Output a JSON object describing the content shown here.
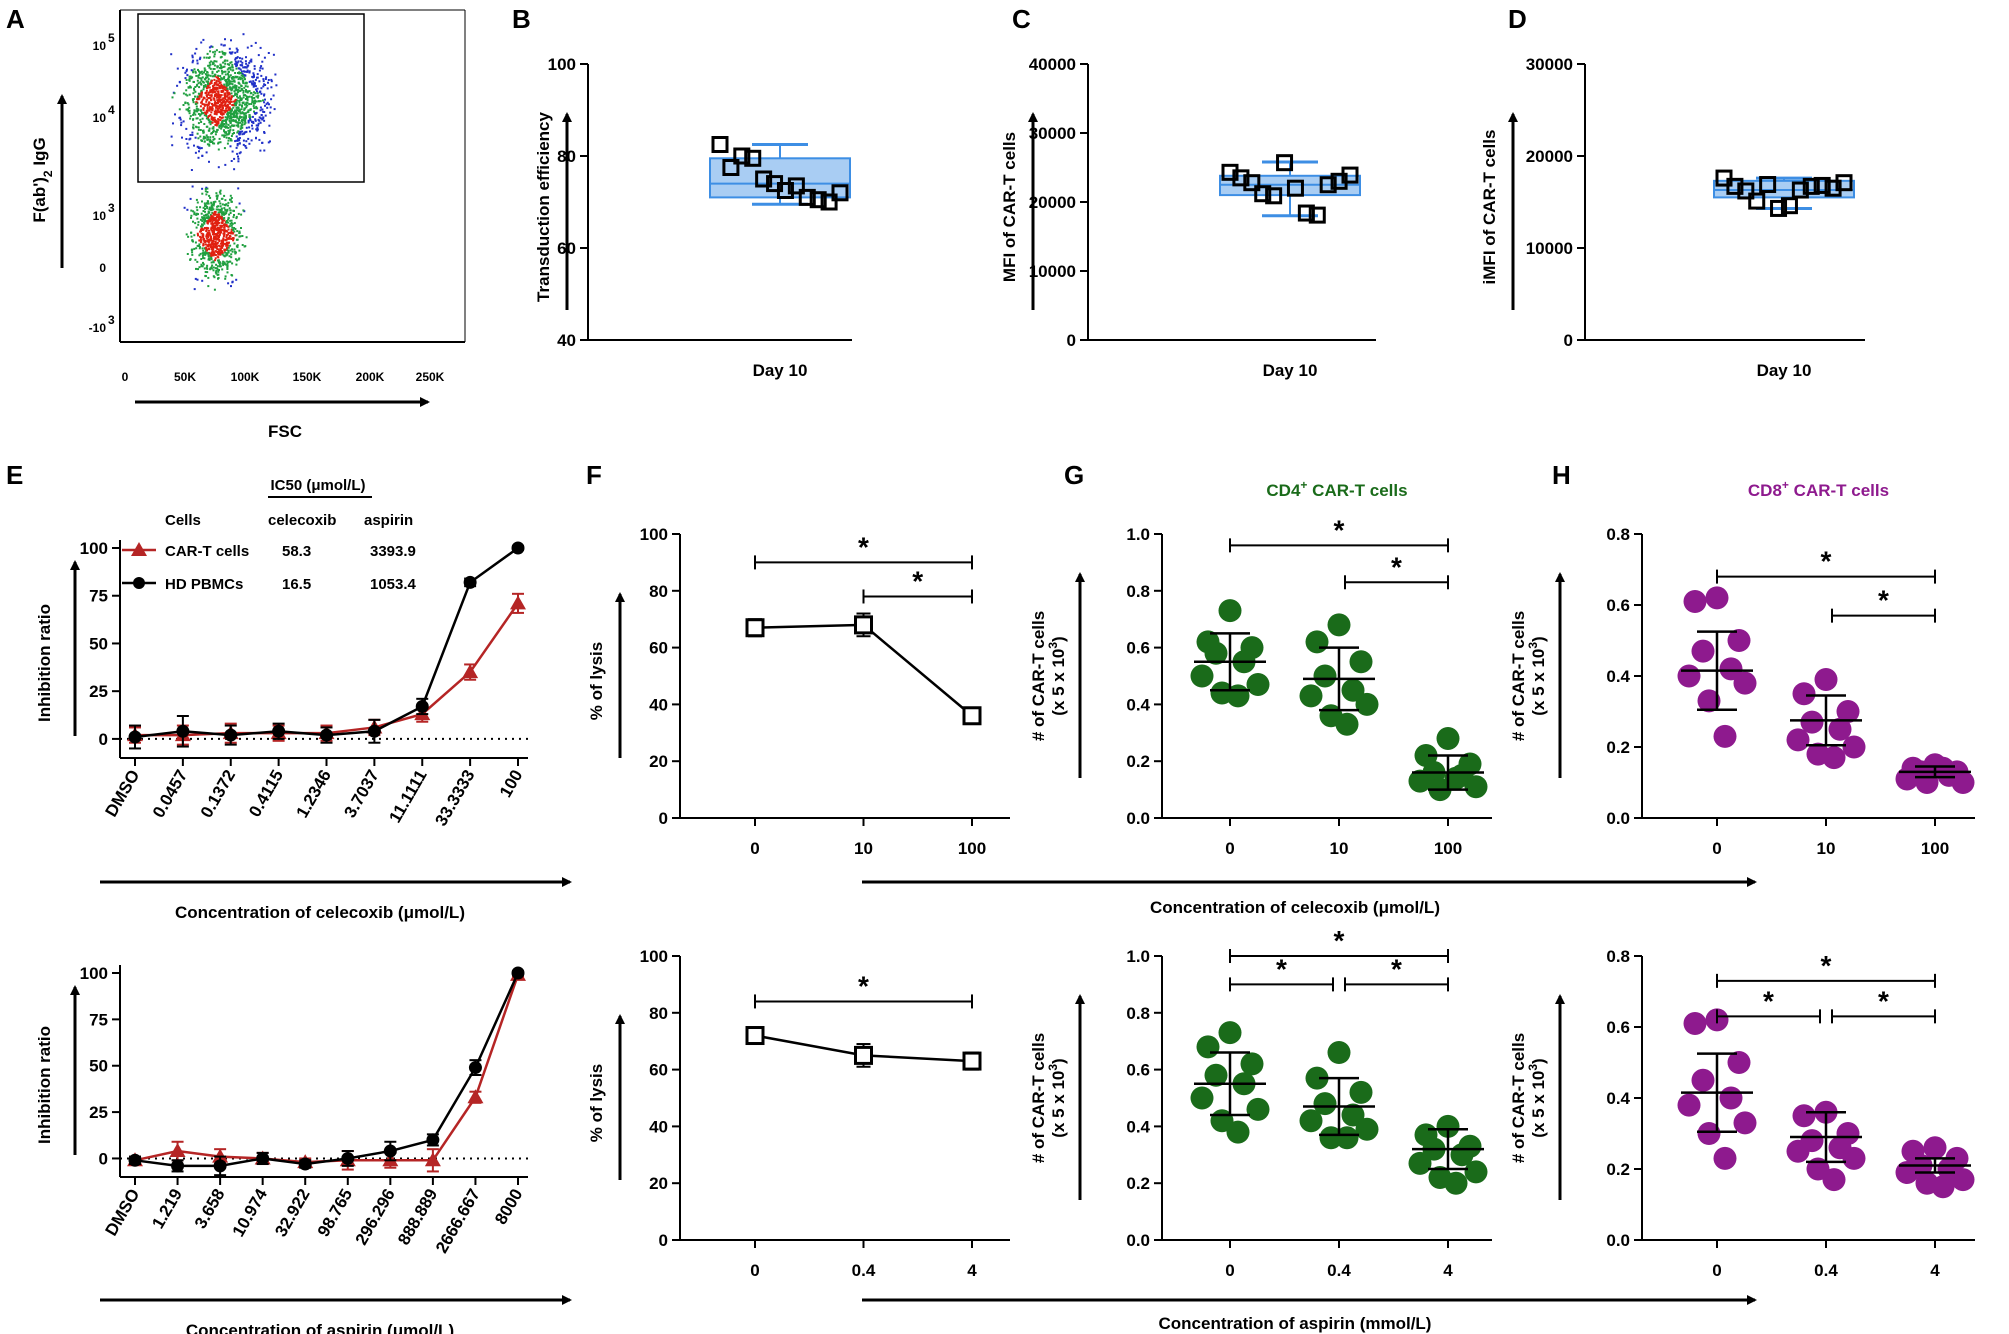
{
  "figure": {
    "panel_letters": [
      "A",
      "B",
      "C",
      "D",
      "E",
      "F",
      "G",
      "H"
    ],
    "bottom_axis_labels": {
      "celecoxib_shared": "Concentration of celecoxib (μmol/L)",
      "aspirin_shared": "Concentration of aspirin (mmol/L)"
    }
  },
  "chart_data": [
    {
      "id": "A",
      "type": "scatter",
      "title": "",
      "xlabel": "FSC",
      "ylabel_main": "F(ab')",
      "ylabel_sub": "2",
      "ylabel_end": " IgG",
      "xticks": [
        "0",
        "50K",
        "100K",
        "150K",
        "200K",
        "250K"
      ],
      "yticks": [
        {
          "base": "10",
          "exp": "5"
        },
        {
          "base": "10",
          "exp": "4"
        },
        {
          "base": "10",
          "exp": "3"
        },
        {
          "base": "0",
          "exp": ""
        },
        {
          "base": "-10",
          "exp": "3"
        }
      ],
      "gate": "F(ab')2 IgG positive region",
      "colors": {
        "low": "#2030c8",
        "mid": "#20a040",
        "high": "#e02010"
      }
    },
    {
      "id": "B",
      "type": "scatter",
      "xlabel": "Day 10",
      "ylabel": "Transduction efficiency",
      "ylim": [
        40,
        100
      ],
      "yticks": [
        "40",
        "60",
        "80",
        "100"
      ],
      "box": {
        "q1": 71,
        "median": 74,
        "q3": 79.5,
        "min": 69.5,
        "max": 82.5
      },
      "points": [
        82.5,
        77.5,
        80,
        79.5,
        75,
        74,
        72.5,
        73.5,
        71,
        70.5,
        70,
        72
      ]
    },
    {
      "id": "C",
      "type": "scatter",
      "xlabel": "Day 10",
      "ylabel": "MFI of CAR-T cells",
      "ylim": [
        0,
        40000
      ],
      "yticks": [
        "0",
        "10000",
        "20000",
        "30000",
        "40000"
      ],
      "box": {
        "q1": 21000,
        "median": 22500,
        "q3": 23800,
        "min": 18000,
        "max": 25800
      },
      "points": [
        24300,
        23500,
        22800,
        21200,
        20900,
        25700,
        22000,
        18400,
        18100,
        22500,
        23000,
        23900
      ]
    },
    {
      "id": "D",
      "type": "scatter",
      "xlabel": "Day 10",
      "ylabel": "iMFI of CAR-T cells",
      "ylim": [
        0,
        30000
      ],
      "yticks": [
        "0",
        "10000",
        "20000",
        "30000"
      ],
      "box": {
        "q1": 15500,
        "median": 16300,
        "q3": 17300,
        "min": 14300,
        "max": 17600
      },
      "points": [
        17600,
        16700,
        16200,
        15100,
        16900,
        14300,
        14600,
        16300,
        16700,
        16800,
        16500,
        17100
      ]
    },
    {
      "id": "E-celecoxib",
      "type": "line",
      "ylabel": "Inhibition ratio",
      "xlabel": "Concentration of celecoxib (μmol/L)",
      "categories": [
        "DMSO",
        "0.0457",
        "0.1372",
        "0.4115",
        "1.2346",
        "3.7037",
        "11.1111",
        "33.3333",
        "100"
      ],
      "ylim": [
        -10,
        100
      ],
      "yticks": [
        "0",
        "25",
        "50",
        "75",
        "100"
      ],
      "table_header": "IC50 (μmol/L)",
      "table_cols": [
        "Cells",
        "celecoxib",
        "aspirin"
      ],
      "series": [
        {
          "name": "CAR-T cells",
          "color": "#b52525",
          "marker": "triangle",
          "ic50_celecoxib": "58.3",
          "ic50_aspirin": "3393.9",
          "values": [
            2,
            2,
            3,
            3,
            3,
            6,
            13,
            35,
            71
          ],
          "errors": [
            4,
            5,
            5,
            4,
            4,
            4,
            4,
            4,
            5
          ]
        },
        {
          "name": "HD PBMCs",
          "color": "#000000",
          "marker": "circle",
          "ic50_celecoxib": "16.5",
          "ic50_aspirin": "1053.4",
          "values": [
            1,
            4,
            2,
            4,
            2,
            4,
            17,
            82,
            100
          ],
          "errors": [
            6,
            8,
            5,
            4,
            4,
            6,
            4,
            2,
            1
          ]
        }
      ]
    },
    {
      "id": "E-aspirin",
      "type": "line",
      "ylabel": "Inhibition ratio",
      "xlabel": "Concentration of aspirin (μmol/L)",
      "categories": [
        "DMSO",
        "1.219",
        "3.658",
        "10.974",
        "32.922",
        "98.765",
        "296.296",
        "888.889",
        "2666.667",
        "8000"
      ],
      "ylim": [
        -10,
        100
      ],
      "yticks": [
        "0",
        "25",
        "50",
        "75",
        "100"
      ],
      "series": [
        {
          "name": "CAR-T cells",
          "color": "#b52525",
          "marker": "triangle",
          "values": [
            -1,
            4,
            1,
            0,
            -2,
            -1,
            -1,
            -1,
            33,
            99
          ],
          "errors": [
            2,
            5,
            4,
            3,
            2,
            5,
            4,
            6,
            3,
            1
          ]
        },
        {
          "name": "HD PBMCs",
          "color": "#000000",
          "marker": "circle",
          "values": [
            -1,
            -4,
            -4,
            0,
            -3,
            0,
            4,
            10,
            49,
            100
          ],
          "errors": [
            2,
            3,
            5,
            3,
            2,
            4,
            5,
            3,
            4,
            1
          ]
        }
      ]
    },
    {
      "id": "F-celecoxib",
      "type": "line",
      "ylabel": "% of lysis",
      "categories": [
        "0",
        "10",
        "100"
      ],
      "ylim": [
        0,
        100
      ],
      "yticks": [
        "0",
        "20",
        "40",
        "60",
        "80",
        "100"
      ],
      "values": [
        67,
        68,
        36
      ],
      "errors": [
        3,
        4,
        1
      ],
      "significance": [
        {
          "from": 0,
          "to": 2,
          "y": 90,
          "label": "*"
        },
        {
          "from": 1,
          "to": 2,
          "y": 78,
          "label": "*"
        }
      ]
    },
    {
      "id": "F-aspirin",
      "type": "line",
      "ylabel": "% of lysis",
      "categories": [
        "0",
        "0.4",
        "4"
      ],
      "ylim": [
        0,
        100
      ],
      "yticks": [
        "0",
        "20",
        "40",
        "60",
        "80",
        "100"
      ],
      "values": [
        72,
        65,
        63
      ],
      "errors": [
        1,
        4,
        3
      ],
      "significance": [
        {
          "from": 0,
          "to": 2,
          "y": 84,
          "label": "*"
        }
      ]
    },
    {
      "id": "G-celecoxib",
      "type": "scatter",
      "title": "CD4",
      "title_sup": "+",
      "title_end": " CAR-T cells",
      "color": "#1a6b1a",
      "ylabel": "# of CAR-T cells",
      "ylabel_sub": "(x 5 x 10",
      "ylabel_sup": "3",
      "categories": [
        "0",
        "10",
        "100"
      ],
      "ylim": [
        0,
        1.0
      ],
      "yticks": [
        "0.0",
        "0.2",
        "0.4",
        "0.6",
        "0.8",
        "1.0"
      ],
      "means": [
        0.55,
        0.49,
        0.16
      ],
      "sds": [
        0.1,
        0.11,
        0.06
      ],
      "points": [
        [
          0.73,
          0.62,
          0.6,
          0.58,
          0.55,
          0.5,
          0.47,
          0.44,
          0.43
        ],
        [
          0.68,
          0.62,
          0.55,
          0.5,
          0.45,
          0.43,
          0.4,
          0.36,
          0.33
        ],
        [
          0.28,
          0.22,
          0.19,
          0.16,
          0.15,
          0.13,
          0.11,
          0.1,
          0.14
        ]
      ],
      "significance": [
        {
          "from": 0,
          "to": 2,
          "y": 0.96,
          "label": "*"
        },
        {
          "from": 1,
          "to": 2,
          "y": 0.83,
          "label": "*"
        }
      ]
    },
    {
      "id": "G-aspirin",
      "type": "scatter",
      "color": "#1a6b1a",
      "ylabel": "# of CAR-T cells",
      "ylabel_sub": "(x 5 x 10",
      "ylabel_sup": "3",
      "categories": [
        "0",
        "0.4",
        "4"
      ],
      "ylim": [
        0,
        1.0
      ],
      "yticks": [
        "0.0",
        "0.2",
        "0.4",
        "0.6",
        "0.8",
        "1.0"
      ],
      "means": [
        0.55,
        0.47,
        0.32
      ],
      "sds": [
        0.11,
        0.1,
        0.07
      ],
      "points": [
        [
          0.73,
          0.68,
          0.62,
          0.58,
          0.55,
          0.5,
          0.46,
          0.42,
          0.38
        ],
        [
          0.66,
          0.57,
          0.52,
          0.48,
          0.44,
          0.42,
          0.39,
          0.36,
          0.36
        ],
        [
          0.4,
          0.37,
          0.33,
          0.32,
          0.3,
          0.27,
          0.24,
          0.22,
          0.2
        ]
      ],
      "significance": [
        {
          "from": 0,
          "to": 2,
          "y": 1.0,
          "label": "*"
        },
        {
          "from": 0,
          "to": 1,
          "y": 0.9,
          "label": "*"
        },
        {
          "from": 1,
          "to": 2,
          "y": 0.9,
          "label": "*"
        }
      ]
    },
    {
      "id": "H-celecoxib",
      "type": "scatter",
      "title": "CD8",
      "title_sup": "+",
      "title_end": " CAR-T cells",
      "color": "#8e1a8e",
      "ylabel": "# of CAR-T cells",
      "ylabel_sub": "(x 5 x 10",
      "ylabel_sup": "3",
      "categories": [
        "0",
        "10",
        "100"
      ],
      "ylim": [
        0,
        0.8
      ],
      "yticks": [
        "0.0",
        "0.2",
        "0.4",
        "0.6",
        "0.8"
      ],
      "means": [
        0.415,
        0.275,
        0.13
      ],
      "sds": [
        0.11,
        0.07,
        0.015
      ],
      "points": [
        [
          0.62,
          0.61,
          0.5,
          0.47,
          0.42,
          0.4,
          0.38,
          0.33,
          0.23
        ],
        [
          0.39,
          0.35,
          0.3,
          0.27,
          0.25,
          0.22,
          0.2,
          0.18,
          0.17
        ],
        [
          0.15,
          0.14,
          0.13,
          0.13,
          0.12,
          0.11,
          0.1,
          0.1,
          0.14
        ]
      ],
      "significance": [
        {
          "from": 0,
          "to": 2,
          "y": 0.68,
          "label": "*"
        },
        {
          "from": 1,
          "to": 2,
          "y": 0.57,
          "label": "*"
        }
      ]
    },
    {
      "id": "H-aspirin",
      "type": "scatter",
      "color": "#8e1a8e",
      "ylabel": "# of CAR-T cells",
      "ylabel_sub": "(x 5 x 10",
      "ylabel_sup": "3",
      "categories": [
        "0",
        "0.4",
        "4"
      ],
      "ylim": [
        0,
        0.8
      ],
      "yticks": [
        "0.0",
        "0.2",
        "0.4",
        "0.6",
        "0.8"
      ],
      "means": [
        0.415,
        0.29,
        0.21
      ],
      "sds": [
        0.11,
        0.07,
        0.02
      ],
      "points": [
        [
          0.62,
          0.61,
          0.5,
          0.45,
          0.4,
          0.38,
          0.33,
          0.3,
          0.23
        ],
        [
          0.36,
          0.35,
          0.3,
          0.28,
          0.26,
          0.25,
          0.23,
          0.2,
          0.17
        ],
        [
          0.26,
          0.25,
          0.23,
          0.21,
          0.2,
          0.19,
          0.17,
          0.16,
          0.15
        ]
      ],
      "significance": [
        {
          "from": 0,
          "to": 2,
          "y": 0.73,
          "label": "*"
        },
        {
          "from": 0,
          "to": 1,
          "y": 0.63,
          "label": "*"
        },
        {
          "from": 1,
          "to": 2,
          "y": 0.63,
          "label": "*"
        }
      ]
    }
  ]
}
